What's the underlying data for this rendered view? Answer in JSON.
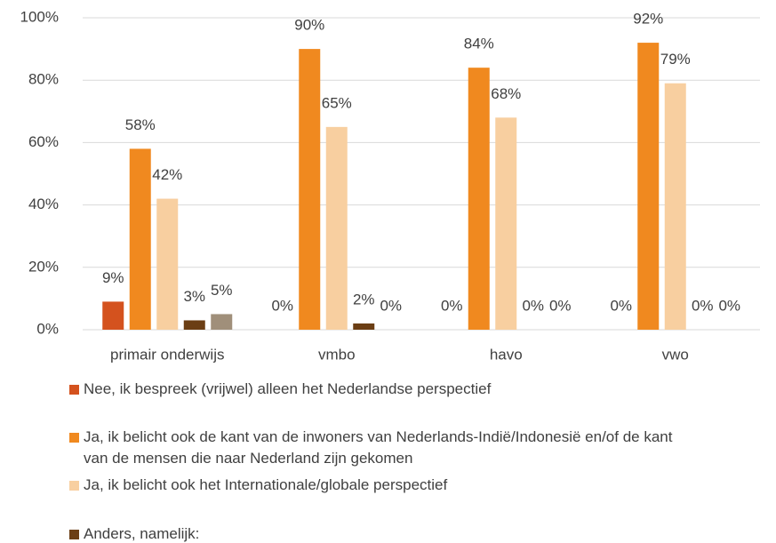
{
  "chart_data": {
    "type": "bar",
    "categories": [
      "primair onderwijs",
      "vmbo",
      "havo",
      "vwo"
    ],
    "series": [
      {
        "name": "Nee, ik bespreek (vrijwel) alleen het Nederlandse perspectief",
        "color": "#d4521e",
        "values": [
          9,
          0,
          0,
          0
        ],
        "value_labels": [
          "9%",
          "0%",
          "0%",
          "0%"
        ]
      },
      {
        "name": "Ja, ik belicht ook de kant van de inwoners van Nederlands-Indië/Indonesië en/of de kant van de mensen die naar Nederland zijn gekomen",
        "color": "#f0891f",
        "values": [
          58,
          90,
          84,
          92
        ],
        "value_labels": [
          "58%",
          "90%",
          "84%",
          "92%"
        ]
      },
      {
        "name": "Ja, ik belicht ook het Internationale/globale perspectief",
        "color": "#f8cfa0",
        "values": [
          42,
          65,
          68,
          79
        ],
        "value_labels": [
          "42%",
          "65%",
          "68%",
          "79%"
        ]
      },
      {
        "name": "Anders, namelijk:",
        "color": "#6b3e14",
        "values": [
          3,
          2,
          0,
          0
        ],
        "value_labels": [
          "3%",
          "2%",
          "0%",
          "0%"
        ]
      },
      {
        "color": "#a08f7a",
        "values": [
          5,
          0,
          0,
          0
        ],
        "value_labels": [
          "5%",
          "0%",
          "0%",
          "0%"
        ]
      }
    ],
    "ylim": [
      0,
      100
    ],
    "yticks": [
      {
        "value": 0,
        "label": "0%"
      },
      {
        "value": 20,
        "label": "20%"
      },
      {
        "value": 40,
        "label": "40%"
      },
      {
        "value": 60,
        "label": "60%"
      },
      {
        "value": 80,
        "label": "80%"
      },
      {
        "value": 100,
        "label": "100%"
      }
    ],
    "grid": true
  }
}
